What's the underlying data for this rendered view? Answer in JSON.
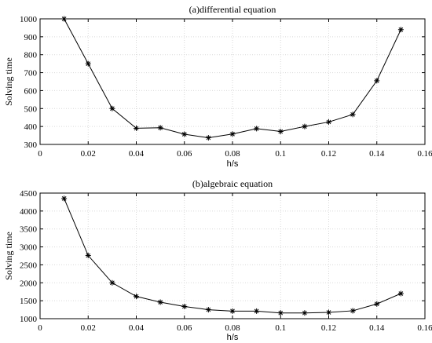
{
  "chart_data": [
    {
      "type": "line",
      "title": "(a)differential equation",
      "xlabel": "h/s",
      "ylabel": "Solving time",
      "xlim": [
        0,
        0.16
      ],
      "ylim": [
        300,
        1000
      ],
      "xticks": [
        "0",
        "0.02",
        "0.04",
        "0.06",
        "0.08",
        "0.1",
        "0.12",
        "0.14",
        "0.16"
      ],
      "yticks": [
        "300",
        "400",
        "500",
        "600",
        "700",
        "800",
        "900",
        "1000"
      ],
      "grid": true,
      "marker": "asterisk",
      "series": [
        {
          "x": [
            0.01,
            0.02,
            0.03,
            0.04,
            0.05,
            0.06,
            0.07,
            0.08,
            0.09,
            0.1,
            0.11,
            0.12,
            0.13,
            0.14,
            0.15
          ],
          "y": [
            1000,
            750,
            500,
            390,
            393,
            357,
            337,
            358,
            388,
            372,
            400,
            425,
            467,
            655,
            940
          ],
          "color": "#000000"
        }
      ]
    },
    {
      "type": "line",
      "title": "(b)algebraic equation",
      "xlabel": "h/s",
      "ylabel": "Solving time",
      "xlim": [
        0,
        0.16
      ],
      "ylim": [
        1000,
        4500
      ],
      "xticks": [
        "0",
        "0.02",
        "0.04",
        "0.06",
        "0.08",
        "0.1",
        "0.12",
        "0.14",
        "0.16"
      ],
      "yticks": [
        "1000",
        "1500",
        "2000",
        "2500",
        "3000",
        "3500",
        "4000",
        "4500"
      ],
      "grid": true,
      "marker": "asterisk",
      "series": [
        {
          "x": [
            0.01,
            0.02,
            0.03,
            0.04,
            0.05,
            0.06,
            0.07,
            0.08,
            0.09,
            0.1,
            0.11,
            0.12,
            0.13,
            0.14,
            0.15
          ],
          "y": [
            4350,
            2760,
            2000,
            1620,
            1460,
            1340,
            1250,
            1210,
            1210,
            1160,
            1160,
            1175,
            1220,
            1410,
            1700
          ],
          "color": "#000000"
        }
      ]
    }
  ]
}
